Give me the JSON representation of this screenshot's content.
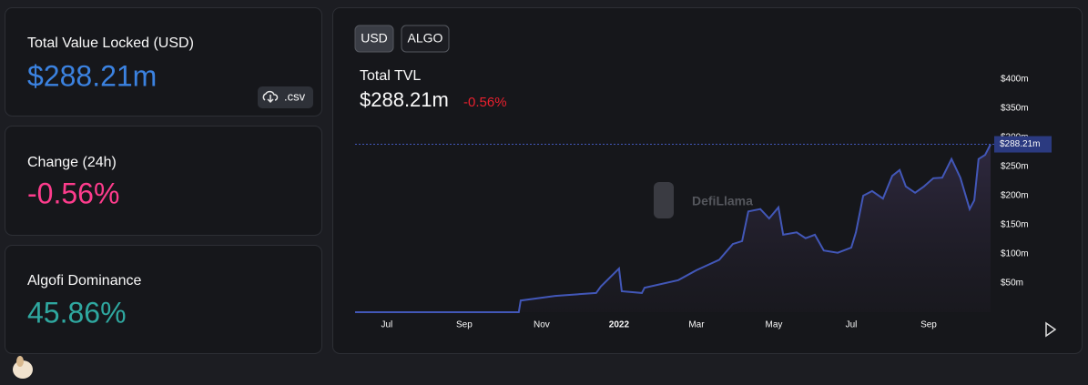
{
  "cards": [
    {
      "label": "Total Value Locked (USD)",
      "value": "$288.21m"
    },
    {
      "label": "Change (24h)",
      "value": "-0.56%"
    },
    {
      "label": "Algofi Dominance",
      "value": "45.86%"
    }
  ],
  "csv_button": ".csv",
  "chart_data": {
    "type": "line",
    "buttons": [
      "USD",
      "ALGO"
    ],
    "title": "Total TVL",
    "value": "$288.21m",
    "change": "-0.56%",
    "watermark": "DefiLlama",
    "last_value_label": "$288.21m",
    "x": [
      -0.82,
      3.41,
      3.46,
      4.35,
      5.41,
      5.53,
      6.0,
      6.07,
      6.59,
      6.66,
      7.53,
      8.0,
      8.59,
      8.94,
      9.18,
      9.34,
      9.65,
      9.88,
      10.12,
      10.24,
      10.59,
      10.82,
      11.06,
      11.29,
      11.65,
      12.0,
      12.12,
      12.31,
      12.54,
      12.82,
      13.06,
      13.25,
      13.41,
      13.65,
      13.88,
      14.12,
      14.35,
      14.59,
      14.82,
      15.06,
      15.18,
      15.29,
      15.46,
      15.6
    ],
    "series": [
      {
        "color": "#4257b8",
        "values": [
          0,
          0,
          20,
          28,
          33,
          44,
          75,
          36,
          33,
          42,
          55,
          72,
          90,
          117,
          122,
          173,
          177,
          161,
          180,
          133,
          137,
          127,
          133,
          106,
          102,
          111,
          137,
          200,
          208,
          195,
          234,
          244,
          216,
          205,
          216,
          230,
          231,
          263,
          231,
          177,
          192,
          263,
          270,
          288.21
        ]
      }
    ],
    "xlim": [
      -0.82,
      15.6
    ],
    "xticks": [
      {
        "value": 0,
        "label": "Jul"
      },
      {
        "value": 2,
        "label": "Sep"
      },
      {
        "value": 4,
        "label": "Nov"
      },
      {
        "value": 6,
        "label": "2022"
      },
      {
        "value": 8,
        "label": "Mar"
      },
      {
        "value": 10,
        "label": "May"
      },
      {
        "value": 12,
        "label": "Jul"
      },
      {
        "value": 14,
        "label": "Sep"
      }
    ],
    "ylim": [
      0,
      400
    ],
    "yticks": [
      {
        "value": 50,
        "label": "$50m"
      },
      {
        "value": 100,
        "label": "$100m"
      },
      {
        "value": 150,
        "label": "$150m"
      },
      {
        "value": 200,
        "label": "$200m"
      },
      {
        "value": 250,
        "label": "$250m"
      },
      {
        "value": 300,
        "label": "$300m"
      },
      {
        "value": 350,
        "label": "$350m"
      },
      {
        "value": 400,
        "label": "$400m"
      }
    ]
  }
}
